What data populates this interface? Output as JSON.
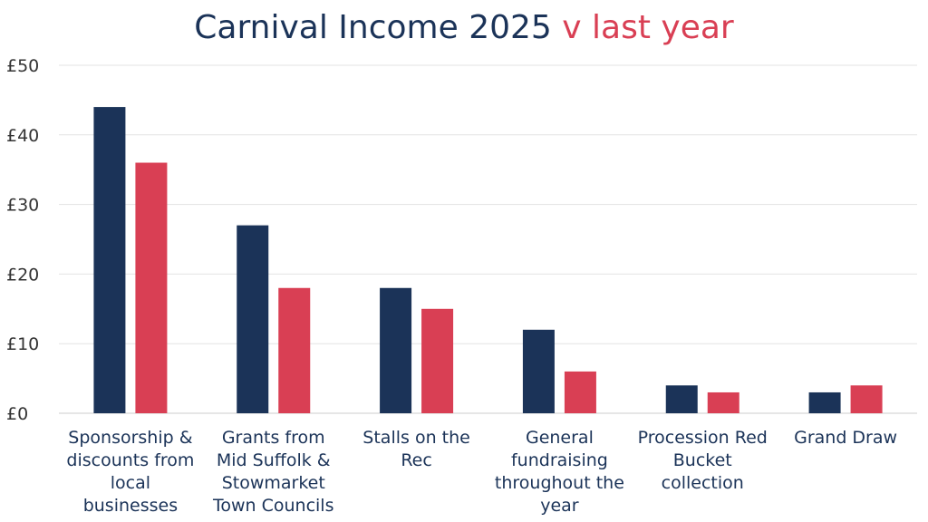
{
  "colors": {
    "this_year": "#1b3358",
    "last_year": "#d93f54",
    "grid": "#e3e3e3",
    "axis": "#cccccc"
  },
  "chart_data": {
    "type": "bar",
    "title": "Carnival Income 2025",
    "title_highlight": "v last year",
    "xlabel": "",
    "ylabel": "",
    "ylim": [
      0,
      50
    ],
    "yticks": [
      0,
      10,
      20,
      30,
      40,
      50
    ],
    "ytick_labels": [
      "£0",
      "£10",
      "£20",
      "£30",
      "£40",
      "£50"
    ],
    "grid": true,
    "legend": "none",
    "categories": [
      "Sponsorship & discounts from local businesses",
      "Grants from Mid Suffolk & Stowmarket Town Councils",
      "Stalls on the Rec",
      "General fundraising throughout the year",
      "Procession Red Bucket collection",
      "Grand Draw"
    ],
    "category_lines": [
      [
        "Sponsorship &",
        "discounts from",
        "local",
        "businesses"
      ],
      [
        "Grants from",
        "Mid Suffolk &",
        "Stowmarket",
        "Town Councils"
      ],
      [
        "Stalls on the",
        "Rec"
      ],
      [
        "General",
        "fundraising",
        "throughout the",
        "year"
      ],
      [
        "Procession Red",
        "Bucket",
        "collection"
      ],
      [
        "Grand Draw"
      ]
    ],
    "series": [
      {
        "values": [
          44,
          27,
          18,
          12,
          4,
          3
        ]
      },
      {
        "values": [
          36,
          18,
          15,
          6,
          3,
          4
        ]
      }
    ]
  }
}
